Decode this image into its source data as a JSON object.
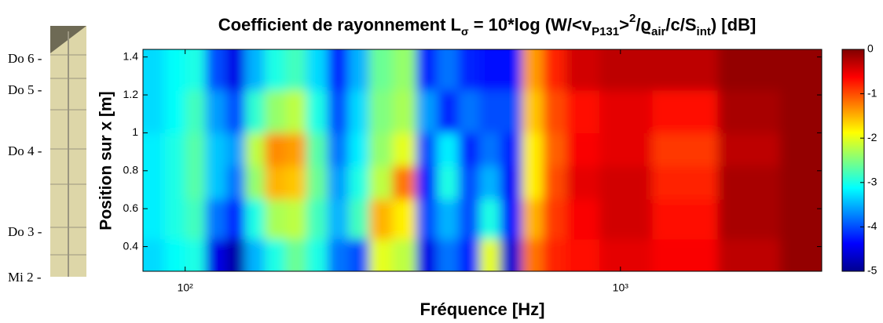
{
  "chart_data": {
    "type": "heatmap",
    "title": [
      "Coefficient de rayonnement L",
      "σ",
      " = 10*log (W/<v",
      "P131",
      ">",
      "2",
      "/ϱ",
      "air",
      "/c/S",
      "int",
      ") [dB]"
    ],
    "xlabel": "Fréquence [Hz]",
    "ylabel": "Position sur x [m]",
    "annotations": [
      "Do 6 -",
      "Do 5 -",
      "Do 4 -",
      "Do 3 -",
      "Mi 2 -"
    ],
    "xscale": "log",
    "x": [
      85,
      95,
      105,
      118,
      130,
      145,
      160,
      180,
      200,
      225,
      250,
      280,
      320,
      360,
      400,
      450,
      500,
      560,
      630,
      700,
      800,
      1000,
      1400,
      2000,
      2700
    ],
    "y": [
      0.33,
      0.55,
      0.75,
      0.9,
      1.1,
      1.35
    ],
    "values": [
      [
        -3.3,
        -3.1,
        -3.0,
        -4.5,
        -4.8,
        -3.5,
        -3.0,
        -2.6,
        -3.0,
        -3.8,
        -4.0,
        -2.0,
        -2.2,
        -4.5,
        -3.8,
        -4.2,
        -2.0,
        -4.6,
        -1.2,
        -0.8,
        -0.7,
        -0.5,
        -0.6,
        -0.3,
        -0.1
      ],
      [
        -3.2,
        -3.0,
        -2.8,
        -3.8,
        -4.2,
        -3.0,
        -2.3,
        -2.2,
        -2.8,
        -3.5,
        -2.8,
        -1.5,
        -1.8,
        -4.0,
        -3.5,
        -4.0,
        -3.0,
        -4.3,
        -1.5,
        -0.9,
        -0.6,
        -0.4,
        -0.7,
        -0.2,
        -0.1
      ],
      [
        -3.2,
        -3.0,
        -2.7,
        -3.4,
        -3.8,
        -2.4,
        -1.5,
        -1.6,
        -2.6,
        -3.6,
        -3.0,
        -2.2,
        -1.2,
        -4.2,
        -3.0,
        -4.0,
        -3.5,
        -4.4,
        -1.8,
        -1.0,
        -0.5,
        -0.4,
        -0.8,
        -0.2,
        -0.1
      ],
      [
        -3.2,
        -3.0,
        -2.7,
        -3.4,
        -3.6,
        -2.2,
        -1.3,
        -1.4,
        -2.7,
        -3.8,
        -3.2,
        -2.4,
        -2.0,
        -4.0,
        -3.2,
        -4.2,
        -3.8,
        -4.2,
        -1.8,
        -1.1,
        -0.6,
        -0.5,
        -0.9,
        -0.3,
        -0.1
      ],
      [
        -3.3,
        -3.1,
        -2.8,
        -3.6,
        -4.0,
        -2.9,
        -2.4,
        -2.2,
        -3.0,
        -4.0,
        -3.3,
        -2.5,
        -2.3,
        -3.6,
        -4.2,
        -3.8,
        -4.0,
        -4.0,
        -1.6,
        -1.0,
        -0.7,
        -0.5,
        -0.7,
        -0.2,
        -0.1
      ],
      [
        -3.3,
        -3.1,
        -3.0,
        -4.0,
        -4.5,
        -3.5,
        -3.0,
        -2.8,
        -3.3,
        -4.2,
        -3.5,
        -2.6,
        -2.4,
        -4.2,
        -3.8,
        -4.2,
        -4.3,
        -4.3,
        -1.4,
        -0.8,
        -0.4,
        -0.3,
        -0.3,
        -0.1,
        -0.1
      ]
    ],
    "xlim": [
      80,
      2900
    ],
    "ylim": [
      0.27,
      1.44
    ],
    "xticks": [
      {
        "value": 100,
        "label": "10²"
      },
      {
        "value": 1000,
        "label": "10³"
      }
    ],
    "yticks": [
      0.4,
      0.6,
      0.8,
      1,
      1.2,
      1.4
    ],
    "clim": [
      -5,
      0
    ],
    "cticks": [
      0,
      -1,
      -2,
      -3,
      -4,
      -5
    ],
    "colormap": "jet"
  }
}
